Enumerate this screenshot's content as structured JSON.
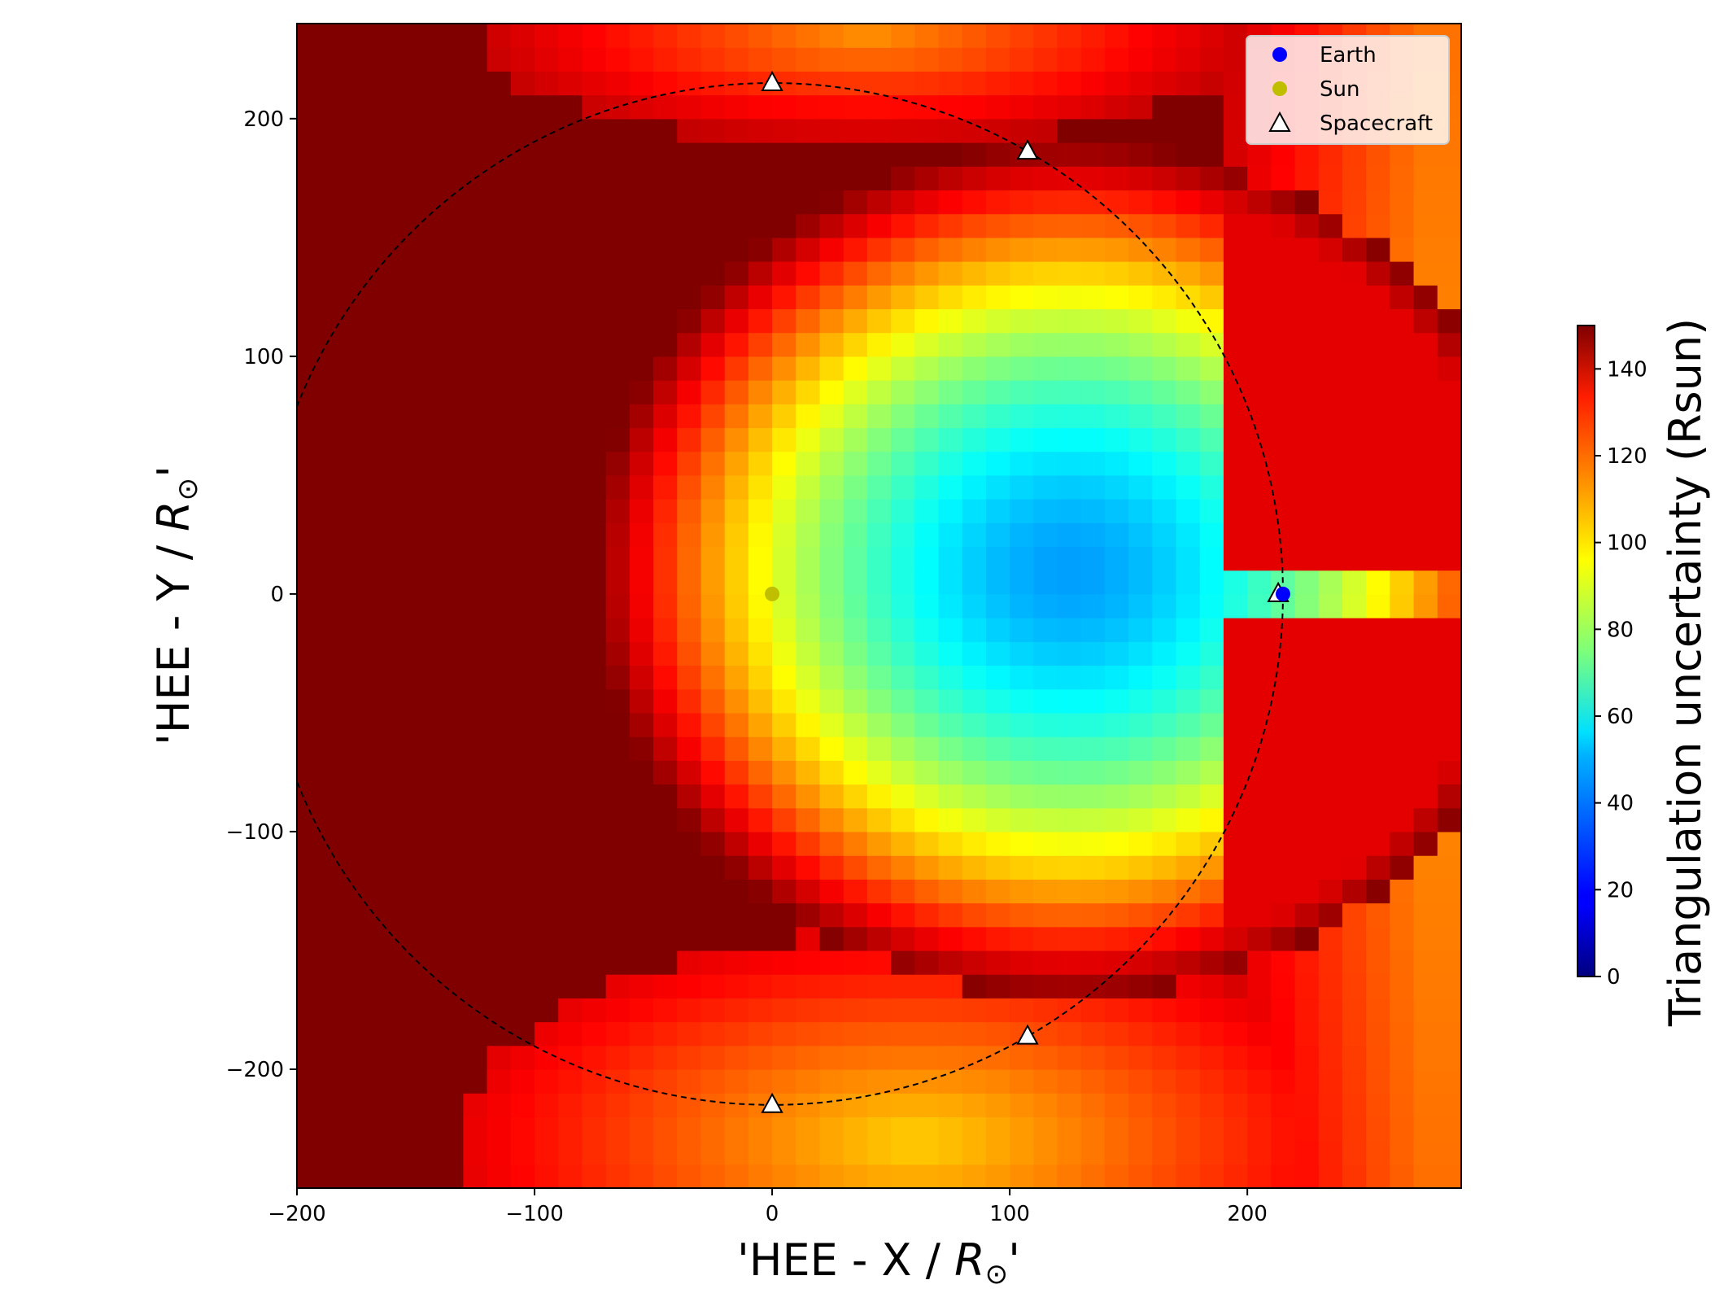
{
  "chart_data": {
    "type": "heatmap",
    "xlabel_main": "'HEE - X / ",
    "xlabel_symbol": "R",
    "xlabel_sub": "⊙",
    "xlabel_end": "'",
    "ylabel_main": "'HEE - Y / ",
    "ylabel_symbol": "R",
    "ylabel_sub": "⊙",
    "ylabel_end": "'",
    "xlim": [
      -200,
      290
    ],
    "ylim": [
      -250,
      240
    ],
    "x_ticks": [
      -200,
      -100,
      0,
      100,
      200
    ],
    "x_tick_labels": [
      "−200",
      "−100",
      "0",
      "100",
      "200"
    ],
    "y_ticks": [
      -200,
      -100,
      0,
      100,
      200
    ],
    "y_tick_labels": [
      "−200",
      "−100",
      "0",
      "100",
      "200"
    ],
    "grid_cell_size": 10,
    "colormap": "jet",
    "colorbar": {
      "label": "Triangulation uncertainty (Rsun)",
      "range": [
        0,
        150
      ],
      "ticks": [
        0,
        20,
        40,
        60,
        80,
        100,
        120,
        140
      ],
      "tick_labels": [
        "0",
        "20",
        "40",
        "60",
        "80",
        "100",
        "120",
        "140"
      ]
    },
    "uncertainty_model": {
      "center": [
        125,
        10
      ],
      "semi_axes": [
        200,
        180
      ],
      "min_value": 42,
      "inside_saturation_value": 150,
      "right_side_band_value": 135,
      "bottom_gap_value": 100
    },
    "orbit_circle": {
      "center": [
        0,
        0
      ],
      "radius": 215,
      "style": "dashed"
    },
    "legend": {
      "position": "upper right",
      "entries": [
        {
          "label": "Earth",
          "marker": "circle",
          "color": "#0000ff"
        },
        {
          "label": "Sun",
          "marker": "circle",
          "color": "#bfbf00"
        },
        {
          "label": "Spacecraft",
          "marker": "triangle",
          "color": "#ffffff"
        }
      ]
    },
    "points": {
      "earth": [
        215,
        0
      ],
      "sun": [
        0,
        0
      ],
      "spacecraft": [
        [
          0,
          215
        ],
        [
          107.5,
          186.2
        ],
        [
          213,
          0
        ],
        [
          107.5,
          -186.2
        ],
        [
          0,
          -215
        ]
      ]
    }
  }
}
